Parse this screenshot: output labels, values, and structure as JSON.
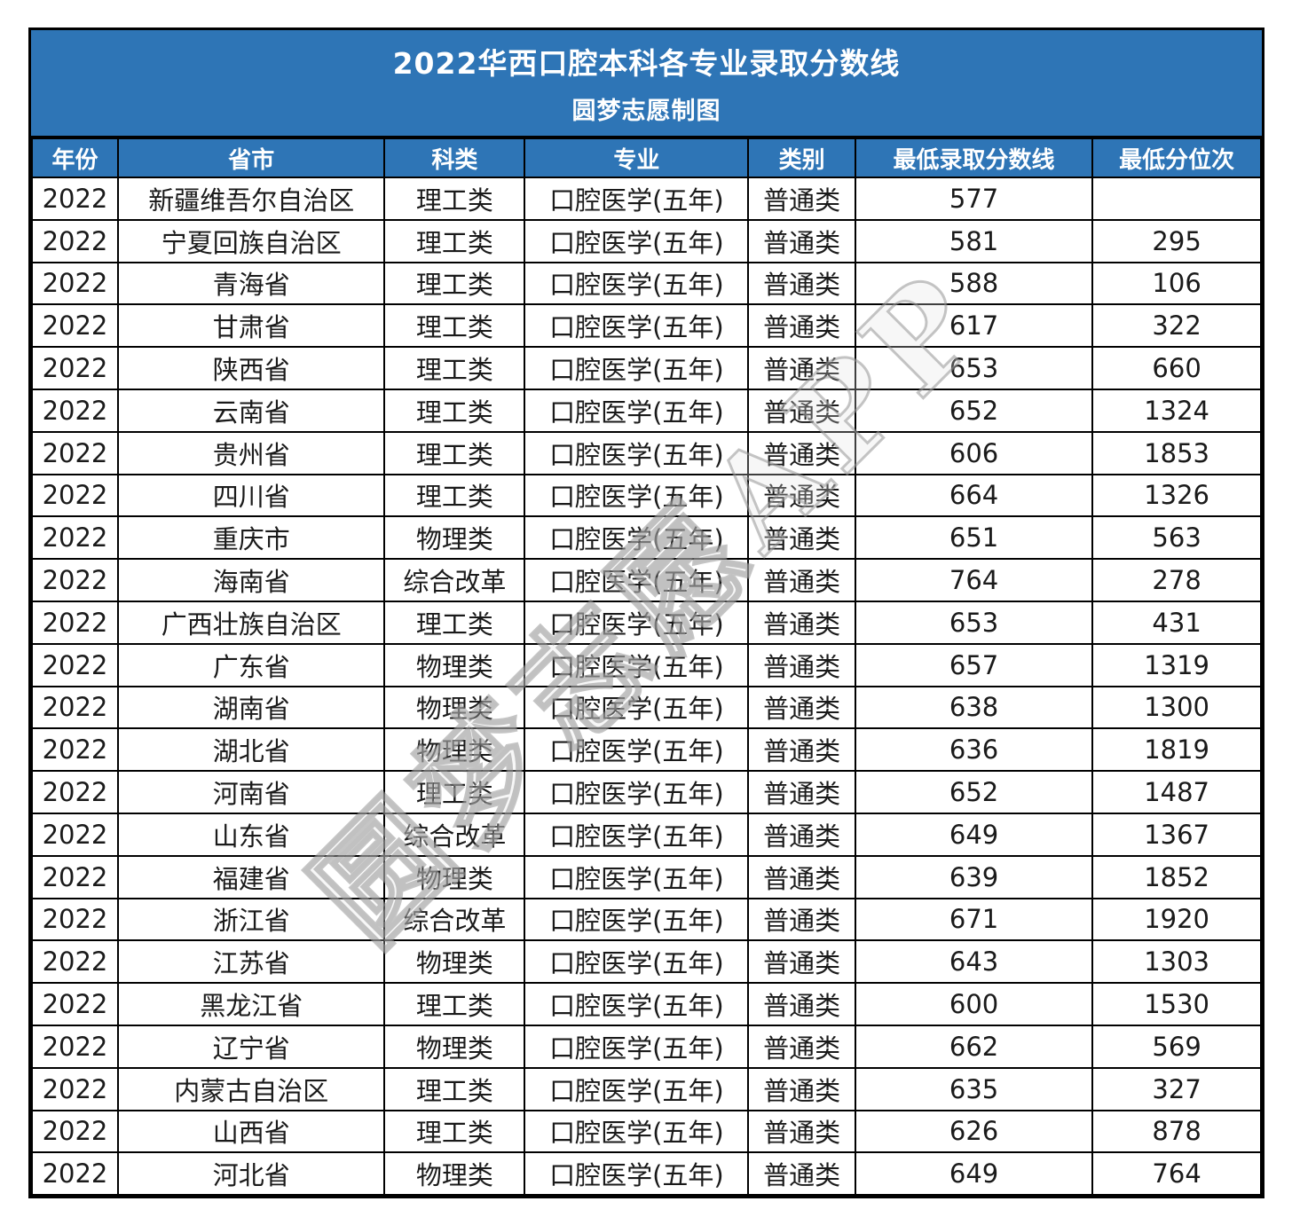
{
  "chart_data": {
    "type": "table",
    "title": "2022华西口腔本科各专业录取分数线",
    "subtitle": "圆梦志愿制图",
    "columns": [
      "年份",
      "省市",
      "科类",
      "专业",
      "类别",
      "最低录取分数线",
      "最低分位次"
    ],
    "rows": [
      [
        "2022",
        "新疆维吾尔自治区",
        "理工类",
        "口腔医学(五年)",
        "普通类",
        "577",
        ""
      ],
      [
        "2022",
        "宁夏回族自治区",
        "理工类",
        "口腔医学(五年)",
        "普通类",
        "581",
        "295"
      ],
      [
        "2022",
        "青海省",
        "理工类",
        "口腔医学(五年)",
        "普通类",
        "588",
        "106"
      ],
      [
        "2022",
        "甘肃省",
        "理工类",
        "口腔医学(五年)",
        "普通类",
        "617",
        "322"
      ],
      [
        "2022",
        "陕西省",
        "理工类",
        "口腔医学(五年)",
        "普通类",
        "653",
        "660"
      ],
      [
        "2022",
        "云南省",
        "理工类",
        "口腔医学(五年)",
        "普通类",
        "652",
        "1324"
      ],
      [
        "2022",
        "贵州省",
        "理工类",
        "口腔医学(五年)",
        "普通类",
        "606",
        "1853"
      ],
      [
        "2022",
        "四川省",
        "理工类",
        "口腔医学(五年)",
        "普通类",
        "664",
        "1326"
      ],
      [
        "2022",
        "重庆市",
        "物理类",
        "口腔医学(五年)",
        "普通类",
        "651",
        "563"
      ],
      [
        "2022",
        "海南省",
        "综合改革",
        "口腔医学(五年)",
        "普通类",
        "764",
        "278"
      ],
      [
        "2022",
        "广西壮族自治区",
        "理工类",
        "口腔医学(五年)",
        "普通类",
        "653",
        "431"
      ],
      [
        "2022",
        "广东省",
        "物理类",
        "口腔医学(五年)",
        "普通类",
        "657",
        "1319"
      ],
      [
        "2022",
        "湖南省",
        "物理类",
        "口腔医学(五年)",
        "普通类",
        "638",
        "1300"
      ],
      [
        "2022",
        "湖北省",
        "物理类",
        "口腔医学(五年)",
        "普通类",
        "636",
        "1819"
      ],
      [
        "2022",
        "河南省",
        "理工类",
        "口腔医学(五年)",
        "普通类",
        "652",
        "1487"
      ],
      [
        "2022",
        "山东省",
        "综合改革",
        "口腔医学(五年)",
        "普通类",
        "649",
        "1367"
      ],
      [
        "2022",
        "福建省",
        "物理类",
        "口腔医学(五年)",
        "普通类",
        "639",
        "1852"
      ],
      [
        "2022",
        "浙江省",
        "综合改革",
        "口腔医学(五年)",
        "普通类",
        "671",
        "1920"
      ],
      [
        "2022",
        "江苏省",
        "物理类",
        "口腔医学(五年)",
        "普通类",
        "643",
        "1303"
      ],
      [
        "2022",
        "黑龙江省",
        "理工类",
        "口腔医学(五年)",
        "普通类",
        "600",
        "1530"
      ],
      [
        "2022",
        "辽宁省",
        "物理类",
        "口腔医学(五年)",
        "普通类",
        "662",
        "569"
      ],
      [
        "2022",
        "内蒙古自治区",
        "理工类",
        "口腔医学(五年)",
        "普通类",
        "635",
        "327"
      ],
      [
        "2022",
        "山西省",
        "理工类",
        "口腔医学(五年)",
        "普通类",
        "626",
        "878"
      ],
      [
        "2022",
        "河北省",
        "物理类",
        "口腔医学(五年)",
        "普通类",
        "649",
        "764"
      ]
    ],
    "layout": {
      "column_widths_percent": [
        7.0,
        21.7,
        11.4,
        18.2,
        8.7,
        19.3,
        13.7
      ],
      "grid": "on"
    }
  },
  "watermark": {
    "text": "圆梦志愿APP"
  },
  "colors": {
    "header_bg": "#2E75B6",
    "header_text": "#FFFFFF",
    "body_text": "#1A1A1A",
    "border": "#000000",
    "watermark": "#BEBEBE"
  }
}
